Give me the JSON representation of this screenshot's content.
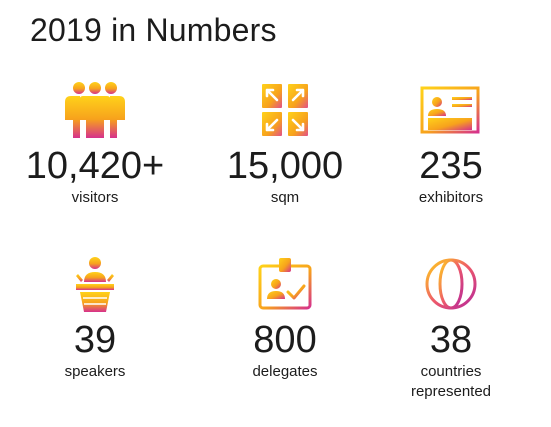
{
  "title": "2019 in Numbers",
  "colors": {
    "gradient_start": "#ffd21a",
    "gradient_mid": "#f7a21c",
    "gradient_end": "#d6318c",
    "text": "#1c1c1c"
  },
  "stats": [
    {
      "icon": "people-group-icon",
      "value": "10,420+",
      "label": "visitors"
    },
    {
      "icon": "expand-area-icon",
      "value": "15,000",
      "label": "sqm"
    },
    {
      "icon": "exhibition-booth-icon",
      "value": "235",
      "label": "exhibitors"
    },
    {
      "icon": "speaker-podium-icon",
      "value": "39",
      "label": "speakers"
    },
    {
      "icon": "id-badge-check-icon",
      "value": "800",
      "label": "delegates"
    },
    {
      "icon": "globe-icon",
      "value": "38",
      "label": "countries represented"
    }
  ]
}
